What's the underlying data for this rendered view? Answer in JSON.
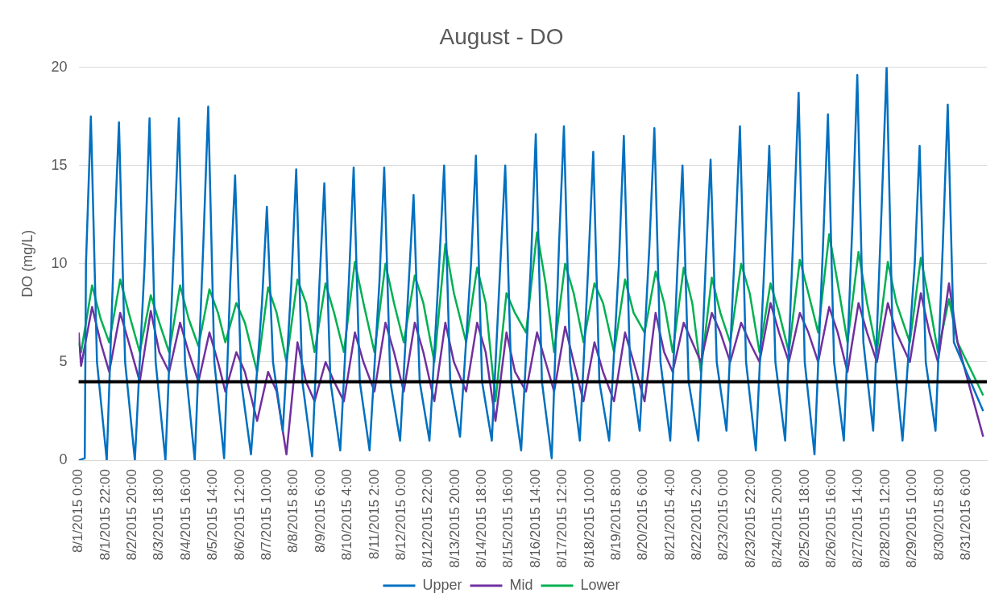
{
  "chart_data": {
    "type": "line",
    "title": "August - DO",
    "ylabel": "DO (mg/L)",
    "xlim": [
      "2015-08-01T00:00",
      "2015-08-31T23:00"
    ],
    "ylim": [
      0,
      20
    ],
    "yticks": [
      0,
      5,
      10,
      15,
      20
    ],
    "xticks": [
      {
        "value": "2015-08-01T00:00",
        "label": "8/1/2015 0:00"
      },
      {
        "value": "2015-08-01T22:00",
        "label": "8/1/2015 22:00"
      },
      {
        "value": "2015-08-02T20:00",
        "label": "8/2/2015 20:00"
      },
      {
        "value": "2015-08-03T18:00",
        "label": "8/3/2015 18:00"
      },
      {
        "value": "2015-08-04T16:00",
        "label": "8/4/2015 16:00"
      },
      {
        "value": "2015-08-05T14:00",
        "label": "8/5/2015 14:00"
      },
      {
        "value": "2015-08-06T12:00",
        "label": "8/6/2015 12:00"
      },
      {
        "value": "2015-08-07T10:00",
        "label": "8/7/2015 10:00"
      },
      {
        "value": "2015-08-08T08:00",
        "label": "8/8/2015 8:00"
      },
      {
        "value": "2015-08-09T06:00",
        "label": "8/9/2015 6:00"
      },
      {
        "value": "2015-08-10T04:00",
        "label": "8/10/2015 4:00"
      },
      {
        "value": "2015-08-11T02:00",
        "label": "8/11/2015 2:00"
      },
      {
        "value": "2015-08-12T00:00",
        "label": "8/12/2015 0:00"
      },
      {
        "value": "2015-08-12T22:00",
        "label": "8/12/2015 22:00"
      },
      {
        "value": "2015-08-13T20:00",
        "label": "8/13/2015 20:00"
      },
      {
        "value": "2015-08-14T18:00",
        "label": "8/14/2015 18:00"
      },
      {
        "value": "2015-08-15T16:00",
        "label": "8/15/2015 16:00"
      },
      {
        "value": "2015-08-16T14:00",
        "label": "8/16/2015 14:00"
      },
      {
        "value": "2015-08-17T12:00",
        "label": "8/17/2015 12:00"
      },
      {
        "value": "2015-08-18T10:00",
        "label": "8/18/2015 10:00"
      },
      {
        "value": "2015-08-19T08:00",
        "label": "8/19/2015 8:00"
      },
      {
        "value": "2015-08-20T06:00",
        "label": "8/20/2015 6:00"
      },
      {
        "value": "2015-08-21T04:00",
        "label": "8/21/2015 4:00"
      },
      {
        "value": "2015-08-22T02:00",
        "label": "8/22/2015 2:00"
      },
      {
        "value": "2015-08-23T00:00",
        "label": "8/23/2015 0:00"
      },
      {
        "value": "2015-08-23T22:00",
        "label": "8/23/2015 22:00"
      },
      {
        "value": "2015-08-24T20:00",
        "label": "8/24/2015 20:00"
      },
      {
        "value": "2015-08-25T18:00",
        "label": "8/25/2015 18:00"
      },
      {
        "value": "2015-08-26T16:00",
        "label": "8/26/2015 16:00"
      },
      {
        "value": "2015-08-27T14:00",
        "label": "8/27/2015 14:00"
      },
      {
        "value": "2015-08-28T12:00",
        "label": "8/28/2015 12:00"
      },
      {
        "value": "2015-08-29T10:00",
        "label": "8/29/2015 10:00"
      },
      {
        "value": "2015-08-30T08:00",
        "label": "8/30/2015 8:00"
      },
      {
        "value": "2015-08-31T06:00",
        "label": "8/31/2015 6:00"
      }
    ],
    "grid": "y",
    "legend": "bottom",
    "ref_lines": [
      {
        "axis": "y",
        "value": 4,
        "color": "#000000"
      }
    ],
    "x": [
      "2015-08-01T00:00",
      "2015-08-01T02:00",
      "2015-08-01T11:00",
      "2015-08-01T18:00",
      "2015-08-02T01:00",
      "2015-08-02T10:00",
      "2015-08-02T17:00",
      "2015-08-03T02:00",
      "2015-08-03T11:00",
      "2015-08-03T18:00",
      "2015-08-04T02:00",
      "2015-08-04T11:00",
      "2015-08-04T18:00",
      "2015-08-05T02:00",
      "2015-08-05T11:00",
      "2015-08-05T18:00",
      "2015-08-06T00:00",
      "2015-08-06T09:00",
      "2015-08-06T16:00",
      "2015-08-07T02:00",
      "2015-08-07T11:00",
      "2015-08-07T18:00",
      "2015-08-08T02:00",
      "2015-08-08T11:00",
      "2015-08-08T18:00",
      "2015-08-09T01:00",
      "2015-08-09T10:00",
      "2015-08-09T17:00",
      "2015-08-10T01:00",
      "2015-08-10T10:00",
      "2015-08-10T17:00",
      "2015-08-11T02:00",
      "2015-08-11T11:00",
      "2015-08-11T18:00",
      "2015-08-12T02:00",
      "2015-08-12T11:00",
      "2015-08-12T18:00",
      "2015-08-13T03:00",
      "2015-08-13T12:00",
      "2015-08-13T19:00",
      "2015-08-14T05:00",
      "2015-08-14T14:00",
      "2015-08-14T21:00",
      "2015-08-15T05:00",
      "2015-08-15T14:00",
      "2015-08-15T21:00",
      "2015-08-16T06:00",
      "2015-08-16T15:00",
      "2015-08-16T22:00",
      "2015-08-17T05:00",
      "2015-08-17T14:00",
      "2015-08-17T21:00",
      "2015-08-18T05:00",
      "2015-08-18T14:00",
      "2015-08-18T21:00",
      "2015-08-19T06:00",
      "2015-08-19T15:00",
      "2015-08-19T22:00",
      "2015-08-20T07:00",
      "2015-08-20T16:00",
      "2015-08-20T23:00",
      "2015-08-21T06:00",
      "2015-08-21T15:00",
      "2015-08-21T22:00",
      "2015-08-22T05:00",
      "2015-08-22T14:00",
      "2015-08-22T21:00",
      "2015-08-23T05:00",
      "2015-08-23T14:00",
      "2015-08-23T21:00",
      "2015-08-24T05:00",
      "2015-08-24T14:00",
      "2015-08-24T21:00",
      "2015-08-25T05:00",
      "2015-08-25T14:00",
      "2015-08-25T21:00",
      "2015-08-26T05:00",
      "2015-08-26T14:00",
      "2015-08-26T21:00",
      "2015-08-27T05:00",
      "2015-08-27T14:00",
      "2015-08-27T21:00",
      "2015-08-28T05:00",
      "2015-08-28T14:00",
      "2015-08-28T21:00",
      "2015-08-29T08:00",
      "2015-08-29T17:00",
      "2015-08-30T00:00",
      "2015-08-30T07:00",
      "2015-08-30T16:00",
      "2015-08-30T23:00",
      "2015-08-31T20:00"
    ],
    "series": [
      {
        "name": "Upper",
        "color": "#0070c0",
        "x": [
          "2015-08-01T00:00",
          "2015-08-01T05:00",
          "2015-08-01T06:00",
          "2015-08-01T10:00",
          "2015-08-01T15:00",
          "2015-08-01T23:00",
          "2015-08-02T05:00",
          "2015-08-02T09:00",
          "2015-08-02T14:00",
          "2015-08-02T22:00",
          "2015-08-03T06:00",
          "2015-08-03T10:00",
          "2015-08-03T15:00",
          "2015-08-03T23:00",
          "2015-08-04T06:00",
          "2015-08-04T10:00",
          "2015-08-04T15:00",
          "2015-08-04T23:00",
          "2015-08-05T06:00",
          "2015-08-05T10:00",
          "2015-08-05T15:00",
          "2015-08-05T23:00",
          "2015-08-06T04:00",
          "2015-08-06T08:00",
          "2015-08-06T13:00",
          "2015-08-06T21:00",
          "2015-08-07T06:00",
          "2015-08-07T10:00",
          "2015-08-07T15:00",
          "2015-08-07T23:00",
          "2015-08-08T06:00",
          "2015-08-08T10:00",
          "2015-08-08T15:00",
          "2015-08-08T23:00",
          "2015-08-09T05:00",
          "2015-08-09T09:00",
          "2015-08-09T14:00",
          "2015-08-09T22:00",
          "2015-08-10T05:00",
          "2015-08-10T09:00",
          "2015-08-10T14:00",
          "2015-08-10T22:00",
          "2015-08-11T06:00",
          "2015-08-11T10:00",
          "2015-08-11T15:00",
          "2015-08-11T23:00",
          "2015-08-12T06:00",
          "2015-08-12T10:00",
          "2015-08-12T15:00",
          "2015-08-12T23:00",
          "2015-08-13T07:00",
          "2015-08-13T11:00",
          "2015-08-13T16:00",
          "2015-08-14T00:00",
          "2015-08-14T09:00",
          "2015-08-14T13:00",
          "2015-08-14T18:00",
          "2015-08-15T02:00",
          "2015-08-15T09:00",
          "2015-08-15T13:00",
          "2015-08-15T18:00",
          "2015-08-16T02:00",
          "2015-08-16T10:00",
          "2015-08-16T14:00",
          "2015-08-16T19:00",
          "2015-08-17T03:00",
          "2015-08-17T09:00",
          "2015-08-17T13:00",
          "2015-08-17T18:00",
          "2015-08-18T02:00",
          "2015-08-18T09:00",
          "2015-08-18T13:00",
          "2015-08-18T18:00",
          "2015-08-19T02:00",
          "2015-08-19T10:00",
          "2015-08-19T14:00",
          "2015-08-19T19:00",
          "2015-08-20T03:00",
          "2015-08-20T11:00",
          "2015-08-20T15:00",
          "2015-08-20T20:00",
          "2015-08-21T04:00",
          "2015-08-21T10:00",
          "2015-08-21T14:00",
          "2015-08-21T19:00",
          "2015-08-22T03:00",
          "2015-08-22T09:00",
          "2015-08-22T13:00",
          "2015-08-22T18:00",
          "2015-08-23T02:00",
          "2015-08-23T09:00",
          "2015-08-23T13:00",
          "2015-08-23T18:00",
          "2015-08-24T02:00",
          "2015-08-24T09:00",
          "2015-08-24T13:00",
          "2015-08-24T18:00",
          "2015-08-25T02:00",
          "2015-08-25T09:00",
          "2015-08-25T13:00",
          "2015-08-25T18:00",
          "2015-08-26T02:00",
          "2015-08-26T09:00",
          "2015-08-26T13:00",
          "2015-08-26T18:00",
          "2015-08-27T02:00",
          "2015-08-27T09:00",
          "2015-08-27T13:00",
          "2015-08-27T18:00",
          "2015-08-28T02:00",
          "2015-08-28T09:00",
          "2015-08-28T13:00",
          "2015-08-28T18:00",
          "2015-08-29T02:00",
          "2015-08-29T12:00",
          "2015-08-29T16:00",
          "2015-08-29T21:00",
          "2015-08-30T05:00",
          "2015-08-30T11:00",
          "2015-08-30T15:00",
          "2015-08-30T20:00",
          "2015-08-31T20:00"
        ],
        "values": [
          0,
          0.1,
          10,
          17.5,
          5,
          0,
          11,
          17.2,
          5,
          0,
          10,
          17.4,
          5,
          0,
          11,
          17.4,
          5,
          0,
          11,
          18.0,
          5,
          0.1,
          9,
          14.5,
          4,
          0.3,
          8,
          12.9,
          5,
          1.5,
          9,
          14.8,
          4,
          0.2,
          9,
          14.1,
          4,
          0.5,
          9,
          14.9,
          4,
          0.5,
          9,
          14.9,
          4,
          1.0,
          9,
          13.5,
          4,
          1.0,
          10,
          15.0,
          4,
          1.2,
          10,
          15.5,
          4,
          1.0,
          10,
          15.0,
          4,
          0.5,
          10,
          16.6,
          4,
          0.1,
          11,
          17.0,
          5,
          1.0,
          10,
          15.7,
          4,
          1.0,
          10,
          16.5,
          5,
          1.5,
          11,
          16.9,
          5,
          1.0,
          10,
          15.0,
          4,
          1.0,
          10,
          15.3,
          5,
          1.5,
          11,
          17.0,
          5,
          0.5,
          10,
          16.0,
          5,
          1.0,
          12,
          18.7,
          5,
          0.3,
          11,
          17.6,
          5,
          1.0,
          12,
          19.6,
          6,
          1.5,
          13,
          20.0,
          6,
          1.0,
          10,
          16.0,
          5,
          1.5,
          11,
          18.1,
          6,
          2.5
        ]
      },
      {
        "name": "Mid",
        "color": "#7030a0",
        "values": [
          6.5,
          4.8,
          7.8,
          6.0,
          4.5,
          7.5,
          6.0,
          4.0,
          7.6,
          5.5,
          4.5,
          7.0,
          5.5,
          4.0,
          6.5,
          5.0,
          3.5,
          5.5,
          4.5,
          2.0,
          4.5,
          3.5,
          0.3,
          6.0,
          4.0,
          3.0,
          5.0,
          4.0,
          3.0,
          6.5,
          5.0,
          3.5,
          7.0,
          5.5,
          3.5,
          7.0,
          5.5,
          3.0,
          7.0,
          5.0,
          3.5,
          7.0,
          5.5,
          2.0,
          6.5,
          4.5,
          3.5,
          6.5,
          5.0,
          3.5,
          6.8,
          5.0,
          3.0,
          6.0,
          4.5,
          3.0,
          6.5,
          5.0,
          3.0,
          7.5,
          5.5,
          4.5,
          7.0,
          6.0,
          5.0,
          7.5,
          6.5,
          5.0,
          7.0,
          6.0,
          5.0,
          8.0,
          6.5,
          5.0,
          7.5,
          6.5,
          5.0,
          7.8,
          6.5,
          4.5,
          8.0,
          6.5,
          5.0,
          8.0,
          6.5,
          5.0,
          8.5,
          6.5,
          5.0,
          9.0,
          6.0,
          1.2
        ]
      },
      {
        "name": "Lower",
        "color": "#00b050",
        "values": [
          6.0,
          5.5,
          8.9,
          7.2,
          6.0,
          9.2,
          7.5,
          5.5,
          8.4,
          7.0,
          5.5,
          8.9,
          7.2,
          5.8,
          8.7,
          7.5,
          6.0,
          8.0,
          7.0,
          4.5,
          8.8,
          7.5,
          5.0,
          9.2,
          8.0,
          5.5,
          9.0,
          7.5,
          5.5,
          10.1,
          8.0,
          5.5,
          10.0,
          8.0,
          6.0,
          9.4,
          8.0,
          5.0,
          11.0,
          8.5,
          6.0,
          9.8,
          8.0,
          3.0,
          8.5,
          7.5,
          6.5,
          11.6,
          9.0,
          5.5,
          10.0,
          8.5,
          6.0,
          9.0,
          8.0,
          5.5,
          9.2,
          7.5,
          6.5,
          9.6,
          8.0,
          5.5,
          9.8,
          8.0,
          4.5,
          9.3,
          7.5,
          6.0,
          10.0,
          8.5,
          5.5,
          9.0,
          7.5,
          5.5,
          10.2,
          8.5,
          6.5,
          11.5,
          9.0,
          6.0,
          10.6,
          8.0,
          5.5,
          10.1,
          8.0,
          6.0,
          10.3,
          8.0,
          5.5,
          8.2,
          6.0,
          3.3
        ]
      }
    ]
  }
}
